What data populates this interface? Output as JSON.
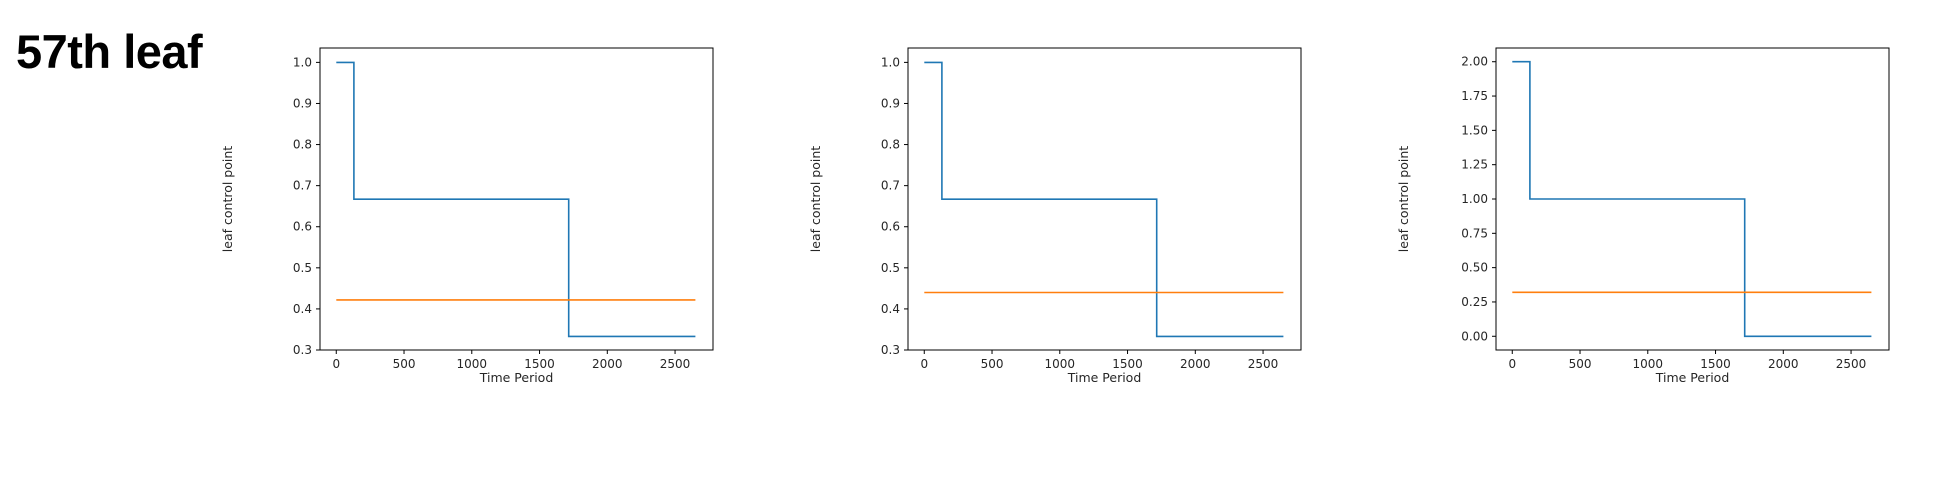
{
  "page": {
    "title": "57th leaf"
  },
  "colors": {
    "step_series": "#1f77b4",
    "flat_series": "#ff7f0e",
    "frame": "#000000"
  },
  "chart_data": [
    {
      "type": "line",
      "xlabel": "Time Period",
      "ylabel": "leaf control point",
      "xlim": [
        -120,
        2780
      ],
      "ylim": [
        0.3,
        1.035
      ],
      "xticks": [
        0,
        500,
        1000,
        1500,
        2000,
        2500
      ],
      "yticks": [
        0.3,
        0.4,
        0.5,
        0.6,
        0.7,
        0.8,
        0.9,
        1.0
      ],
      "ytick_labels": [
        "0.3",
        "0.4",
        "0.5",
        "0.6",
        "0.7",
        "0.8",
        "0.9",
        "1.0"
      ],
      "grid": false,
      "series": [
        {
          "color": "#1f77b4",
          "step": true,
          "x": [
            0,
            130,
            130,
            1715,
            1715,
            2650
          ],
          "y": [
            1.0,
            1.0,
            0.667,
            0.667,
            0.333,
            0.333
          ]
        },
        {
          "color": "#ff7f0e",
          "step": false,
          "x": [
            0,
            2650
          ],
          "y": [
            0.422,
            0.422
          ]
        }
      ]
    },
    {
      "type": "line",
      "xlabel": "Time Period",
      "ylabel": "leaf control point",
      "xlim": [
        -120,
        2780
      ],
      "ylim": [
        0.3,
        1.035
      ],
      "xticks": [
        0,
        500,
        1000,
        1500,
        2000,
        2500
      ],
      "yticks": [
        0.3,
        0.4,
        0.5,
        0.6,
        0.7,
        0.8,
        0.9,
        1.0
      ],
      "ytick_labels": [
        "0.3",
        "0.4",
        "0.5",
        "0.6",
        "0.7",
        "0.8",
        "0.9",
        "1.0"
      ],
      "grid": false,
      "series": [
        {
          "color": "#1f77b4",
          "step": true,
          "x": [
            0,
            130,
            130,
            1715,
            1715,
            2650
          ],
          "y": [
            1.0,
            1.0,
            0.667,
            0.667,
            0.333,
            0.333
          ]
        },
        {
          "color": "#ff7f0e",
          "step": false,
          "x": [
            0,
            2650
          ],
          "y": [
            0.44,
            0.44
          ]
        }
      ]
    },
    {
      "type": "line",
      "xlabel": "Time Period",
      "ylabel": "leaf control point",
      "xlim": [
        -120,
        2780
      ],
      "ylim": [
        -0.1,
        2.1
      ],
      "xticks": [
        0,
        500,
        1000,
        1500,
        2000,
        2500
      ],
      "yticks": [
        0,
        0.25,
        0.5,
        0.75,
        1.0,
        1.25,
        1.5,
        1.75,
        2.0
      ],
      "ytick_labels": [
        "0.00",
        "0.25",
        "0.50",
        "0.75",
        "1.00",
        "1.25",
        "1.50",
        "1.75",
        "2.00"
      ],
      "grid": false,
      "series": [
        {
          "color": "#1f77b4",
          "step": true,
          "x": [
            0,
            130,
            130,
            1715,
            1715,
            2650
          ],
          "y": [
            2.0,
            2.0,
            1.0,
            1.0,
            0.0,
            0.0
          ]
        },
        {
          "color": "#ff7f0e",
          "step": false,
          "x": [
            0,
            2650
          ],
          "y": [
            0.32,
            0.32
          ]
        }
      ]
    }
  ]
}
